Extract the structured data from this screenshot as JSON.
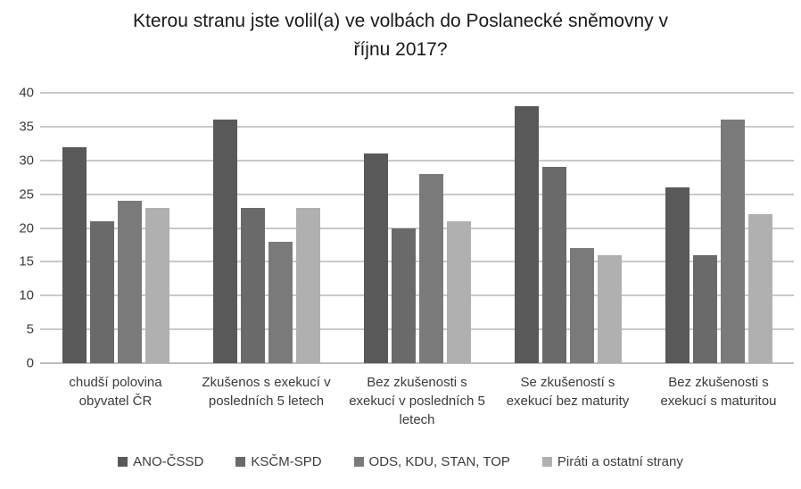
{
  "chart_data": {
    "type": "bar",
    "title": "Kterou stranu jste volil(a) ve volbách do Poslanecké sněmovny v říjnu 2017?",
    "categories": [
      "chudší polovina obyvatel ČR",
      "Zkušenos s exekucí v posledních 5 letech",
      "Bez zkušenosti s exekucí v posledních 5 letech",
      "Se zkušeností s exekucí bez maturity",
      "Bez zkušenosti s exekucí s maturitou"
    ],
    "series": [
      {
        "name": "ANO-ČSSD",
        "color": "#595959",
        "values": [
          32,
          36,
          31,
          38,
          26
        ]
      },
      {
        "name": "KSČM-SPD",
        "color": "#6a6a6a",
        "values": [
          21,
          23,
          20,
          29,
          16
        ]
      },
      {
        "name": "ODS, KDU, STAN, TOP",
        "color": "#7a7a7a",
        "values": [
          24,
          18,
          28,
          17,
          36
        ]
      },
      {
        "name": "Piráti a ostatní strany",
        "color": "#b0b0b0",
        "values": [
          23,
          23,
          21,
          16,
          22
        ]
      }
    ],
    "ylim": [
      0,
      40
    ],
    "ytick": 5,
    "ytick_labels": [
      "0",
      "5",
      "10",
      "15",
      "20",
      "25",
      "30",
      "35",
      "40"
    ],
    "xlabel": "",
    "ylabel": "",
    "grid": true,
    "legend_position": "bottom",
    "gridline_color": "#c9c9c9",
    "axis_line_color": "#bdbdbd",
    "text_color": "#3b3b3b",
    "title_color": "#1a1a1a",
    "background_color": "#ffffff"
  }
}
